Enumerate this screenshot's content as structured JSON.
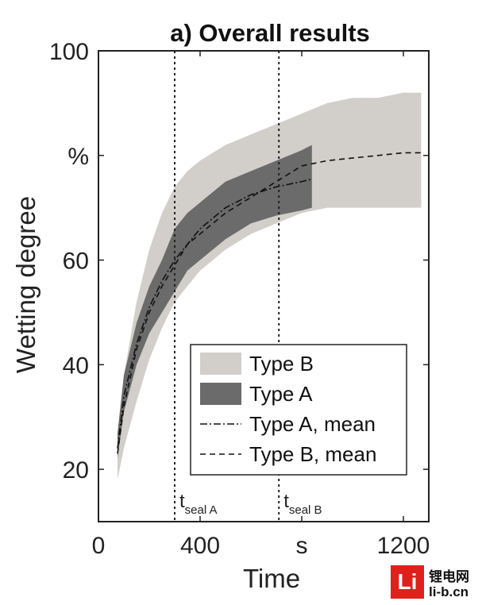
{
  "chart_data": {
    "type": "area",
    "title": "a) Overall results",
    "xlabel": "Time",
    "ylabel": "Wetting degree",
    "xlim": [
      0,
      1300
    ],
    "ylim": [
      10,
      100
    ],
    "x_ticks": [
      "0",
      "400",
      "s",
      "1200"
    ],
    "y_ticks": [
      "20",
      "40",
      "60",
      "%",
      "100"
    ],
    "grid": false,
    "legend_position": "bottom-right",
    "legend": [
      "Type B",
      "Type A",
      "Type A, mean",
      "Type B, mean"
    ],
    "colors": {
      "type_b_band": "#d2cfca",
      "type_a_band": "#6b6b6b",
      "mean_line": "#111111"
    },
    "vertical_lines": [
      {
        "x": 300,
        "label_main": "t",
        "label_sub": "seal A"
      },
      {
        "x": 710,
        "label_main": "t",
        "label_sub": "seal B"
      }
    ],
    "series": [
      {
        "name": "Type B",
        "kind": "band",
        "x": [
          75,
          100,
          150,
          200,
          250,
          300,
          350,
          400,
          500,
          600,
          700,
          800,
          900,
          1000,
          1100,
          1200,
          1270
        ],
        "lower": [
          18,
          24,
          33,
          41,
          47,
          52,
          55,
          58,
          62,
          65,
          67,
          69,
          70,
          70,
          70,
          70,
          70
        ],
        "upper": [
          25,
          38,
          52,
          62,
          69,
          74,
          77,
          79,
          82,
          84,
          86,
          88,
          90,
          91,
          91,
          92,
          92
        ]
      },
      {
        "name": "Type A",
        "kind": "band",
        "x": [
          75,
          100,
          150,
          200,
          250,
          300,
          350,
          400,
          500,
          600,
          700,
          800,
          840
        ],
        "lower": [
          22,
          31,
          40,
          46,
          50,
          54,
          58,
          60,
          64,
          67,
          68.5,
          69.5,
          70
        ],
        "upper": [
          27,
          38,
          48,
          55,
          60,
          66,
          69,
          71,
          75,
          77,
          79,
          81,
          82
        ]
      },
      {
        "name": "Type A, mean",
        "kind": "line",
        "dash": "dashdot",
        "x": [
          75,
          100,
          150,
          200,
          250,
          300,
          350,
          400,
          500,
          600,
          700,
          800,
          840
        ],
        "y": [
          24,
          34,
          44,
          51,
          56,
          60,
          63,
          66,
          70,
          72.5,
          74,
          75,
          75.5
        ]
      },
      {
        "name": "Type B, mean",
        "kind": "line",
        "dash": "dashed",
        "x": [
          75,
          100,
          150,
          200,
          250,
          300,
          350,
          400,
          500,
          600,
          700,
          800,
          900,
          1000,
          1100,
          1200,
          1270
        ],
        "y": [
          23,
          32,
          43,
          50,
          55,
          59,
          63,
          65,
          69,
          72,
          75,
          78,
          79,
          79.5,
          80,
          80.5,
          80.5
        ]
      }
    ]
  },
  "watermark": {
    "logo_text": "Li",
    "site_name": "锂电网",
    "site_url": "li-b.cn"
  }
}
